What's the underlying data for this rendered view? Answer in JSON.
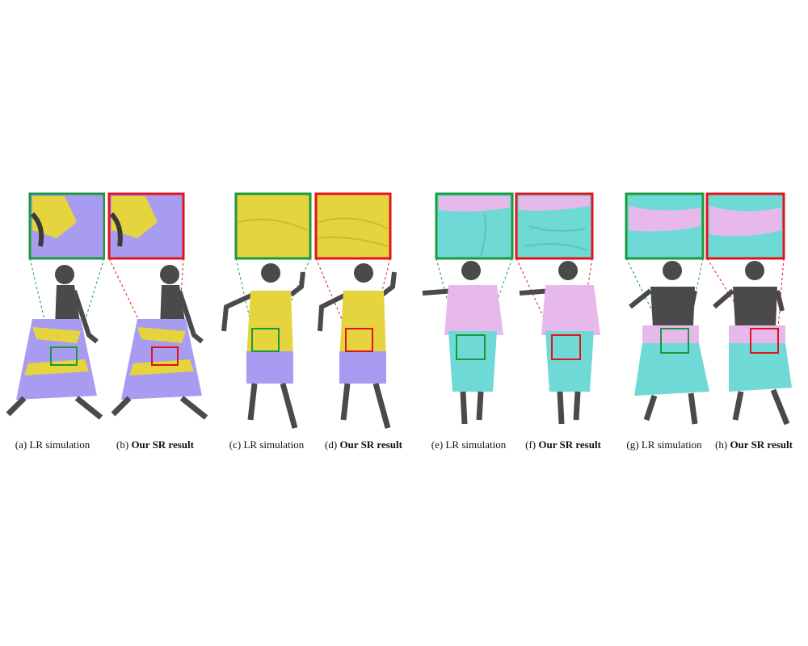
{
  "colors": {
    "green_box": "#1a9a3c",
    "red_box": "#e0141c",
    "body": "#4a4a4a",
    "purple_cloth": "#a79cf2",
    "yellow_cloth": "#e5d43e",
    "pink_cloth": "#e7b8ea",
    "cyan_cloth": "#6fd9d6"
  },
  "captions": [
    {
      "prefix": "(a) ",
      "text": "LR simulation",
      "bold": false
    },
    {
      "prefix": "(b) ",
      "text": "Our SR result",
      "bold": true
    },
    {
      "prefix": "(c) ",
      "text": "LR simulation",
      "bold": false
    },
    {
      "prefix": "(d) ",
      "text": "Our SR result",
      "bold": true
    },
    {
      "prefix": "(e) ",
      "text": "LR simulation",
      "bold": false
    },
    {
      "prefix": "(f) ",
      "text": "Our SR result",
      "bold": true
    },
    {
      "prefix": "(g) ",
      "text": "LR simulation",
      "bold": false
    },
    {
      "prefix": "(h) ",
      "text": "Our SR result",
      "bold": true
    }
  ]
}
